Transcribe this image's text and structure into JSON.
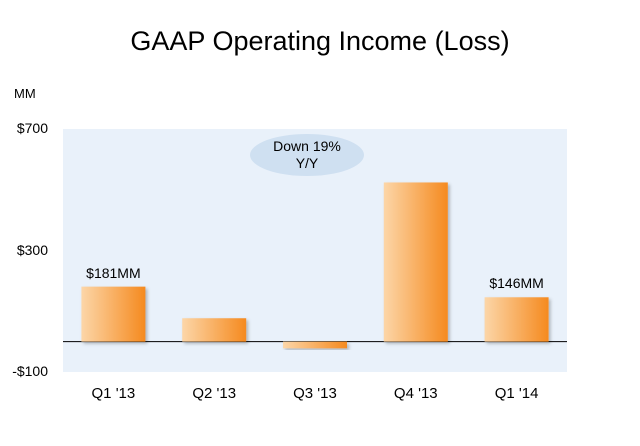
{
  "chart_data": {
    "type": "bar",
    "title": "GAAP Operating Income (Loss)",
    "unit_label": "MM",
    "categories": [
      "Q1 '13",
      "Q2 '13",
      "Q3 '13",
      "Q4 '13",
      "Q1 '14"
    ],
    "values": [
      181,
      77,
      -22,
      524,
      146
    ],
    "data_labels": [
      "$181MM",
      "",
      "",
      "",
      "$146MM"
    ],
    "y_ticks": [
      "$700",
      "$300",
      "-$100"
    ],
    "ylim": [
      -100,
      700
    ],
    "annotation": {
      "line1": "Down 19%",
      "line2": "Y/Y"
    },
    "colors": {
      "bar_light": "#fcd6a8",
      "bar_dark": "#f58a1f",
      "plot_bg": "#e9f1fa",
      "oval": "#cfe0f1"
    }
  }
}
